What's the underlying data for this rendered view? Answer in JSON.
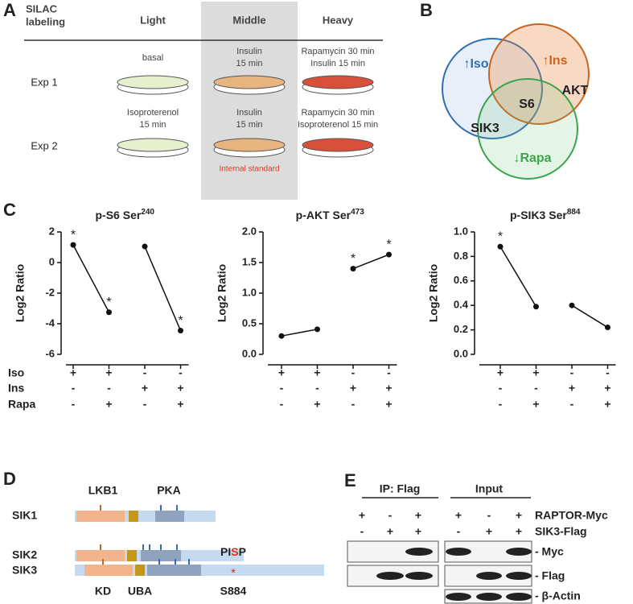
{
  "panel_labels": [
    "A",
    "B",
    "C",
    "D",
    "E"
  ],
  "silac": {
    "header": "SILAC",
    "header2": "labeling",
    "columns": [
      "Light",
      "Middle",
      "Heavy"
    ],
    "experiments": [
      {
        "name": "Exp 1",
        "conditions": [
          [
            "basal"
          ],
          [
            "Insulin",
            "15 min"
          ],
          [
            "Rapamycin 30 min",
            "Insulin 15 min"
          ]
        ]
      },
      {
        "name": "Exp 2",
        "conditions": [
          [
            "Isoproterenol",
            "15 min"
          ],
          [
            "Insulin",
            "15 min"
          ],
          [
            "Rapamycin 30 min",
            "Isoproterenol 15 min"
          ]
        ]
      }
    ],
    "note": "Internal standard"
  },
  "venn": {
    "sets": [
      "↑Iso",
      "↑Ins",
      "↓Rapa"
    ],
    "items": [
      "AKT",
      "S6",
      "SIK3"
    ]
  },
  "chart_data": [
    {
      "type": "line",
      "title": "p-S6 Ser",
      "title_sup": "240",
      "ylabel": "Log2 Ratio",
      "color": "#111",
      "ylim": [
        -6,
        2
      ],
      "yticks": [
        -6,
        -4,
        -2,
        0,
        2
      ],
      "series": [
        {
          "values": [
            1.15,
            -3.25,
            null,
            null
          ],
          "annotations": [
            "*",
            "*",
            null,
            null
          ]
        },
        {
          "values": [
            null,
            null,
            1.05,
            -4.45
          ],
          "annotations": [
            null,
            null,
            null,
            "*"
          ]
        }
      ]
    },
    {
      "type": "line",
      "title": "p-AKT Ser",
      "title_sup": "473",
      "ylabel": "Log2 Ratio",
      "color": "#111",
      "ylim": [
        0,
        2
      ],
      "yticks": [
        {
          "value": 0,
          "label": "0.0"
        },
        0.5,
        {
          "value": 1,
          "label": "1.0"
        },
        1.5,
        {
          "value": 2,
          "label": "2.0"
        }
      ],
      "series": [
        {
          "values": [
            0.3,
            0.41,
            null,
            null
          ],
          "annotations": [
            null,
            null,
            null,
            null
          ]
        },
        {
          "values": [
            null,
            null,
            1.4,
            1.63
          ],
          "annotations": [
            null,
            null,
            "*",
            "*"
          ]
        }
      ]
    },
    {
      "type": "line",
      "title": "p-SIK3 Ser",
      "title_sup": "884",
      "ylabel": "Log2 Ratio",
      "color": "#111",
      "ylim": [
        0,
        1
      ],
      "yticks": [
        {
          "value": 0,
          "label": "0.0"
        },
        0.2,
        0.4,
        0.6,
        0.8,
        {
          "value": 1,
          "label": "1.0"
        }
      ],
      "series": [
        {
          "values": [
            0.88,
            0.39,
            null,
            null
          ],
          "annotations": [
            "*",
            null,
            null,
            null
          ]
        },
        {
          "values": [
            null,
            null,
            0.4,
            0.22
          ],
          "annotations": [
            null,
            null,
            null,
            null
          ]
        }
      ]
    }
  ],
  "treatments": [
    {
      "name": "Iso",
      "signs": [
        "+",
        "+",
        "-",
        "-"
      ]
    },
    {
      "name": "Ins",
      "signs": [
        "-",
        "-",
        "+",
        "+"
      ]
    },
    {
      "name": "Rapa",
      "signs": [
        "-",
        "+",
        "-",
        "+"
      ]
    }
  ],
  "domains": {
    "top_labels": [
      "LKB1",
      "PKA"
    ],
    "proteins": [
      "SIK1",
      "SIK2",
      "SIK3"
    ],
    "motif": [
      "PI",
      "S",
      "P"
    ],
    "bottom_labels": [
      "KD",
      "UBA",
      "S884"
    ],
    "site_mark": "*"
  },
  "blot": {
    "groups": [
      "IP: Flag",
      "Input"
    ],
    "rows": [
      {
        "name": "RAPTOR-Myc",
        "signs": [
          "+",
          "-",
          "+"
        ]
      },
      {
        "name": "SIK3-Flag",
        "signs": [
          "-",
          "+",
          "+"
        ]
      }
    ],
    "bands": [
      "- Myc",
      "- Flag",
      "- β-Actin"
    ]
  }
}
